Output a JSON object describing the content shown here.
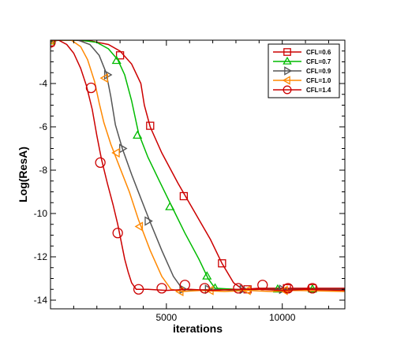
{
  "chart_data": {
    "type": "line",
    "title": "",
    "xlabel": "iterations",
    "ylabel": "Log(ResA)",
    "xlim": [
      0,
      12700
    ],
    "ylim": [
      -14.4,
      -2.0
    ],
    "xticks": [
      5000,
      10000
    ],
    "yticks": [
      -14,
      -12,
      -10,
      -8,
      -6,
      -4
    ],
    "grid": false,
    "legend_position": "top-right",
    "series": [
      {
        "name": "CFL=0.6",
        "color": "#cc0000",
        "marker": "square",
        "points": [
          [
            0,
            -2.1
          ],
          [
            300,
            -2.0
          ],
          [
            1000,
            -2.0
          ],
          [
            1800,
            -2.05
          ],
          [
            2500,
            -2.2
          ],
          [
            3000,
            -2.5
          ],
          [
            3500,
            -3.1
          ],
          [
            3900,
            -4.0
          ],
          [
            4050,
            -5.0
          ],
          [
            4300,
            -6.0
          ],
          [
            4800,
            -7.2
          ],
          [
            5500,
            -8.6
          ],
          [
            6200,
            -9.9
          ],
          [
            6900,
            -11.2
          ],
          [
            7400,
            -12.3
          ],
          [
            7900,
            -13.2
          ],
          [
            8300,
            -13.5
          ],
          [
            9000,
            -13.45
          ],
          [
            10000,
            -13.45
          ],
          [
            11000,
            -13.45
          ],
          [
            12700,
            -13.45
          ]
        ],
        "markers_at": [
          [
            0,
            -2.1
          ],
          [
            3000,
            -2.7
          ],
          [
            4300,
            -5.95
          ],
          [
            5750,
            -9.2
          ],
          [
            7400,
            -12.3
          ],
          [
            8500,
            -13.5
          ],
          [
            10200,
            -13.45
          ],
          [
            11300,
            -13.45
          ]
        ]
      },
      {
        "name": "CFL=0.7",
        "color": "#00bb00",
        "marker": "triangle-up",
        "points": [
          [
            0,
            -2.05
          ],
          [
            400,
            -2.0
          ],
          [
            1300,
            -2.0
          ],
          [
            2000,
            -2.1
          ],
          [
            2500,
            -2.4
          ],
          [
            2900,
            -2.9
          ],
          [
            3200,
            -3.6
          ],
          [
            3500,
            -4.8
          ],
          [
            3800,
            -6.3
          ],
          [
            4200,
            -7.4
          ],
          [
            4700,
            -8.5
          ],
          [
            5200,
            -9.6
          ],
          [
            5800,
            -10.9
          ],
          [
            6400,
            -12.1
          ],
          [
            6800,
            -13.0
          ],
          [
            7100,
            -13.45
          ],
          [
            8000,
            -13.5
          ],
          [
            9000,
            -13.5
          ],
          [
            10000,
            -13.5
          ],
          [
            12700,
            -13.5
          ]
        ],
        "markers_at": [
          [
            0,
            -2.05
          ],
          [
            2850,
            -2.95
          ],
          [
            3750,
            -6.4
          ],
          [
            5150,
            -9.7
          ],
          [
            6750,
            -12.9
          ],
          [
            7100,
            -13.45
          ],
          [
            9800,
            -13.5
          ],
          [
            11300,
            -13.5
          ]
        ]
      },
      {
        "name": "CFL=0.9",
        "color": "#555555",
        "marker": "triangle-right",
        "points": [
          [
            0,
            -2.0
          ],
          [
            500,
            -2.0
          ],
          [
            1200,
            -2.0
          ],
          [
            1700,
            -2.2
          ],
          [
            2100,
            -2.7
          ],
          [
            2400,
            -3.5
          ],
          [
            2600,
            -4.6
          ],
          [
            2800,
            -5.9
          ],
          [
            3100,
            -7.0
          ],
          [
            3500,
            -8.2
          ],
          [
            3900,
            -9.3
          ],
          [
            4300,
            -10.4
          ],
          [
            4800,
            -11.7
          ],
          [
            5300,
            -12.9
          ],
          [
            5700,
            -13.5
          ],
          [
            6200,
            -13.55
          ],
          [
            7000,
            -13.5
          ],
          [
            8000,
            -13.55
          ],
          [
            9000,
            -13.5
          ],
          [
            10000,
            -13.5
          ],
          [
            12700,
            -13.5
          ]
        ],
        "markers_at": [
          [
            0,
            -2.0
          ],
          [
            2450,
            -3.6
          ],
          [
            3100,
            -7.0
          ],
          [
            4200,
            -10.35
          ],
          [
            5700,
            -13.5
          ],
          [
            6800,
            -13.5
          ],
          [
            8300,
            -13.5
          ],
          [
            10000,
            -13.5
          ]
        ]
      },
      {
        "name": "CFL=1.0",
        "color": "#ff8800",
        "marker": "triangle-left",
        "points": [
          [
            0,
            -2.0
          ],
          [
            500,
            -2.0
          ],
          [
            900,
            -2.0
          ],
          [
            1300,
            -2.3
          ],
          [
            1600,
            -2.9
          ],
          [
            1900,
            -3.9
          ],
          [
            2100,
            -4.9
          ],
          [
            2300,
            -5.8
          ],
          [
            2600,
            -6.8
          ],
          [
            3000,
            -7.9
          ],
          [
            3400,
            -9.0
          ],
          [
            3800,
            -10.3
          ],
          [
            4300,
            -11.7
          ],
          [
            4800,
            -12.9
          ],
          [
            5200,
            -13.5
          ],
          [
            5700,
            -13.6
          ],
          [
            6500,
            -13.55
          ],
          [
            7500,
            -13.6
          ],
          [
            8500,
            -13.55
          ],
          [
            9500,
            -13.6
          ],
          [
            10500,
            -13.55
          ],
          [
            12700,
            -13.6
          ]
        ],
        "markers_at": [
          [
            0,
            -2.0
          ],
          [
            2350,
            -3.75
          ],
          [
            2850,
            -7.2
          ],
          [
            3850,
            -10.6
          ],
          [
            5600,
            -13.6
          ],
          [
            6900,
            -13.55
          ],
          [
            8500,
            -13.55
          ],
          [
            10100,
            -13.55
          ]
        ]
      },
      {
        "name": "CFL=1.4",
        "color": "#cc0000",
        "marker": "circle",
        "points": [
          [
            0,
            -2.0
          ],
          [
            350,
            -2.0
          ],
          [
            700,
            -2.2
          ],
          [
            1000,
            -2.6
          ],
          [
            1300,
            -3.3
          ],
          [
            1550,
            -4.1
          ],
          [
            1800,
            -5.2
          ],
          [
            2000,
            -6.4
          ],
          [
            2200,
            -7.5
          ],
          [
            2450,
            -8.6
          ],
          [
            2700,
            -9.6
          ],
          [
            2900,
            -10.5
          ],
          [
            3050,
            -11.3
          ],
          [
            3200,
            -12.1
          ],
          [
            3350,
            -12.7
          ],
          [
            3500,
            -13.2
          ],
          [
            3700,
            -13.5
          ],
          [
            4200,
            -13.5
          ],
          [
            5000,
            -13.55
          ],
          [
            6000,
            -13.5
          ],
          [
            7000,
            -13.55
          ],
          [
            8000,
            -13.5
          ],
          [
            9000,
            -13.5
          ],
          [
            10000,
            -13.55
          ],
          [
            11000,
            -13.5
          ],
          [
            12700,
            -13.55
          ]
        ],
        "markers_at": [
          [
            0,
            -2.1
          ],
          [
            1750,
            -4.2
          ],
          [
            2150,
            -7.65
          ],
          [
            2900,
            -10.9
          ],
          [
            3800,
            -13.5
          ],
          [
            4800,
            -13.45
          ],
          [
            5800,
            -13.3
          ],
          [
            6650,
            -13.45
          ],
          [
            8100,
            -13.45
          ],
          [
            9150,
            -13.3
          ],
          [
            10250,
            -13.45
          ],
          [
            11300,
            -13.45
          ]
        ]
      }
    ]
  }
}
